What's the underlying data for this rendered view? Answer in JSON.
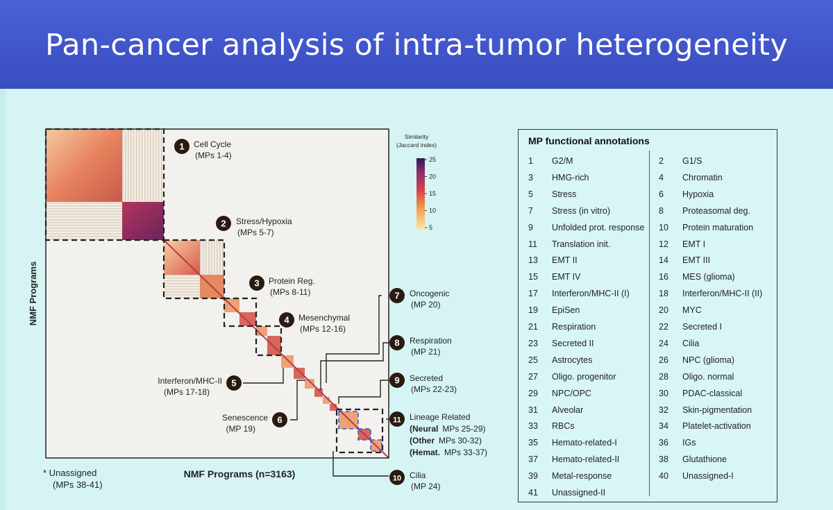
{
  "slide": {
    "title": "Pan-cancer analysis of intra-tumor heterogeneity"
  },
  "figure": {
    "y_axis_label": "NMF Programs",
    "x_axis_label": "NMF Programs (n=3163)",
    "unassigned_label": "* Unassigned",
    "unassigned_mps": "(MPs 38-41)",
    "colorbar": {
      "title_line1": "Similarity",
      "title_line2": "(Jaccard index)",
      "ticks": [
        "25",
        "20",
        "15",
        "10",
        "5"
      ]
    },
    "callouts": [
      {
        "n": "1",
        "name": "Cell Cycle",
        "mps": "(MPs 1-4)"
      },
      {
        "n": "2",
        "name": "Stress/Hypoxia",
        "mps": "(MPs 5-7)"
      },
      {
        "n": "3",
        "name": "Protein Reg.",
        "mps": "(MPs 8-11)"
      },
      {
        "n": "4",
        "name": "Mesenchymal",
        "mps": "(MPs 12-16)"
      },
      {
        "n": "5",
        "name": "Interferon/MHC-II",
        "mps": "(MPs 17-18)"
      },
      {
        "n": "6",
        "name": "Senescence",
        "mps": "(MP 19)"
      },
      {
        "n": "7",
        "name": "Oncogenic",
        "mps": "(MP 20)"
      },
      {
        "n": "8",
        "name": "Respiration",
        "mps": "(MP 21)"
      },
      {
        "n": "9",
        "name": "Secreted",
        "mps": "(MPs 22-23)"
      },
      {
        "n": "11",
        "name": "Lineage Related",
        "sub": [
          {
            "bold": "(Neural",
            "rest": "MPs 25-29)"
          },
          {
            "bold": "(Other",
            "rest": "MPs 30-32)"
          },
          {
            "bold": "(Hemat.",
            "rest": "MPs 33-37)"
          }
        ]
      },
      {
        "n": "10",
        "name": "Cilia",
        "mps": "(MP 24)"
      }
    ]
  },
  "annotations": {
    "title": "MP functional annotations",
    "items": [
      {
        "n": "1",
        "name": "G2/M"
      },
      {
        "n": "2",
        "name": "G1/S"
      },
      {
        "n": "3",
        "name": "HMG-rich"
      },
      {
        "n": "4",
        "name": "Chromatin"
      },
      {
        "n": "5",
        "name": "Stress"
      },
      {
        "n": "6",
        "name": "Hypoxia"
      },
      {
        "n": "7",
        "name": "Stress (in vitro)"
      },
      {
        "n": "8",
        "name": "Proteasomal deg."
      },
      {
        "n": "9",
        "name": "Unfolded prot. response"
      },
      {
        "n": "10",
        "name": "Protein maturation"
      },
      {
        "n": "11",
        "name": "Translation init."
      },
      {
        "n": "12",
        "name": "EMT I"
      },
      {
        "n": "13",
        "name": "EMT II"
      },
      {
        "n": "14",
        "name": "EMT III"
      },
      {
        "n": "15",
        "name": "EMT IV"
      },
      {
        "n": "16",
        "name": "MES (glioma)"
      },
      {
        "n": "17",
        "name": "Interferon/MHC-II (I)"
      },
      {
        "n": "18",
        "name": "Interferon/MHC-II (II)"
      },
      {
        "n": "19",
        "name": "EpiSen"
      },
      {
        "n": "20",
        "name": "MYC"
      },
      {
        "n": "21",
        "name": "Respiration"
      },
      {
        "n": "22",
        "name": "Secreted I"
      },
      {
        "n": "23",
        "name": "Secreted II"
      },
      {
        "n": "24",
        "name": "Cilia"
      },
      {
        "n": "25",
        "name": "Astrocytes"
      },
      {
        "n": "26",
        "name": "NPC (glioma)"
      },
      {
        "n": "27",
        "name": "Oligo. progenitor"
      },
      {
        "n": "28",
        "name": "Oligo. normal"
      },
      {
        "n": "29",
        "name": "NPC/OPC"
      },
      {
        "n": "30",
        "name": "PDAC-classical"
      },
      {
        "n": "31",
        "name": "Alveolar"
      },
      {
        "n": "32",
        "name": "Skin-pigmentation"
      },
      {
        "n": "33",
        "name": "RBCs"
      },
      {
        "n": "34",
        "name": "Platelet-activation"
      },
      {
        "n": "35",
        "name": "Hemato-related-I"
      },
      {
        "n": "36",
        "name": "IGs"
      },
      {
        "n": "37",
        "name": "Hemato-related-II"
      },
      {
        "n": "38",
        "name": "Glutathione"
      },
      {
        "n": "39",
        "name": "Metal-response"
      },
      {
        "n": "40",
        "name": "Unassigned-I"
      },
      {
        "n": "41",
        "name": "Unassigned-II"
      }
    ]
  }
}
